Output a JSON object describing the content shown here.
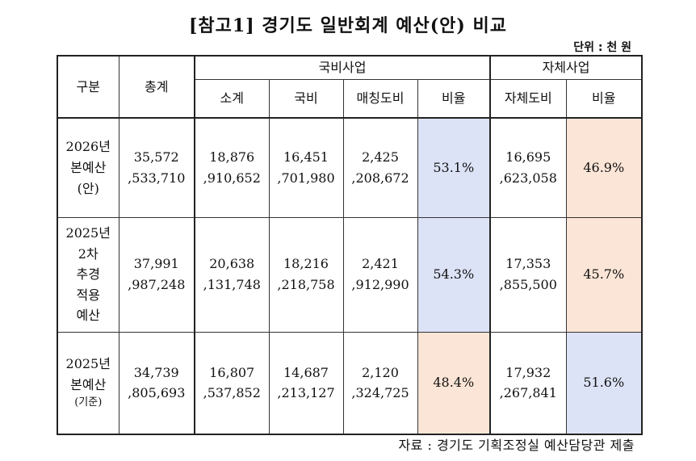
{
  "title": "[참고1] 경기도 일반회계 예산(안) 비교",
  "unit": "단위 : 천 원",
  "headers": {
    "category": "구분",
    "total": "총계",
    "national_group": "국비사업",
    "self_group": "자체사업",
    "subtotal": "소계",
    "national": "국비",
    "matching": "매칭도비",
    "ratio1": "비율",
    "self_provincial": "자체도비",
    "ratio2": "비율"
  },
  "rows": [
    {
      "label": [
        "2026년",
        "본예산",
        "(안)"
      ],
      "total": [
        "35,572",
        ",533,710"
      ],
      "subtotal": [
        "18,876",
        ",910,652"
      ],
      "national": [
        "16,451",
        ",701,980"
      ],
      "matching": [
        "2,425",
        ",208,672"
      ],
      "ratio1": "53.1%",
      "self_provincial": [
        "16,695",
        ",623,058"
      ],
      "ratio2": "46.9%"
    },
    {
      "label": [
        "2025년",
        "2차",
        "추경",
        "적용",
        "예산"
      ],
      "total": [
        "37,991",
        ",987,248"
      ],
      "subtotal": [
        "20,638",
        ",131,748"
      ],
      "national": [
        "18,216",
        ",218,758"
      ],
      "matching": [
        "2,421",
        ",912,990"
      ],
      "ratio1": "54.3%",
      "self_provincial": [
        "17,353",
        ",855,500"
      ],
      "ratio2": "45.7%"
    },
    {
      "label": [
        "2025년",
        "본예산",
        "(기준)"
      ],
      "total": [
        "34,739",
        ",805,693"
      ],
      "subtotal": [
        "16,807",
        ",537,852"
      ],
      "national": [
        "14,687",
        ",213,127"
      ],
      "matching": [
        "2,120",
        ",324,725"
      ],
      "ratio1": "48.4%",
      "self_provincial": [
        "17,932",
        ",267,841"
      ],
      "ratio2": "51.6%"
    }
  ],
  "source": "자료 : 경기도 기획조정실 예산담당관 제출",
  "colors": {
    "ratio_high": "#dde3f6",
    "ratio_low": "#fbe5d6"
  }
}
